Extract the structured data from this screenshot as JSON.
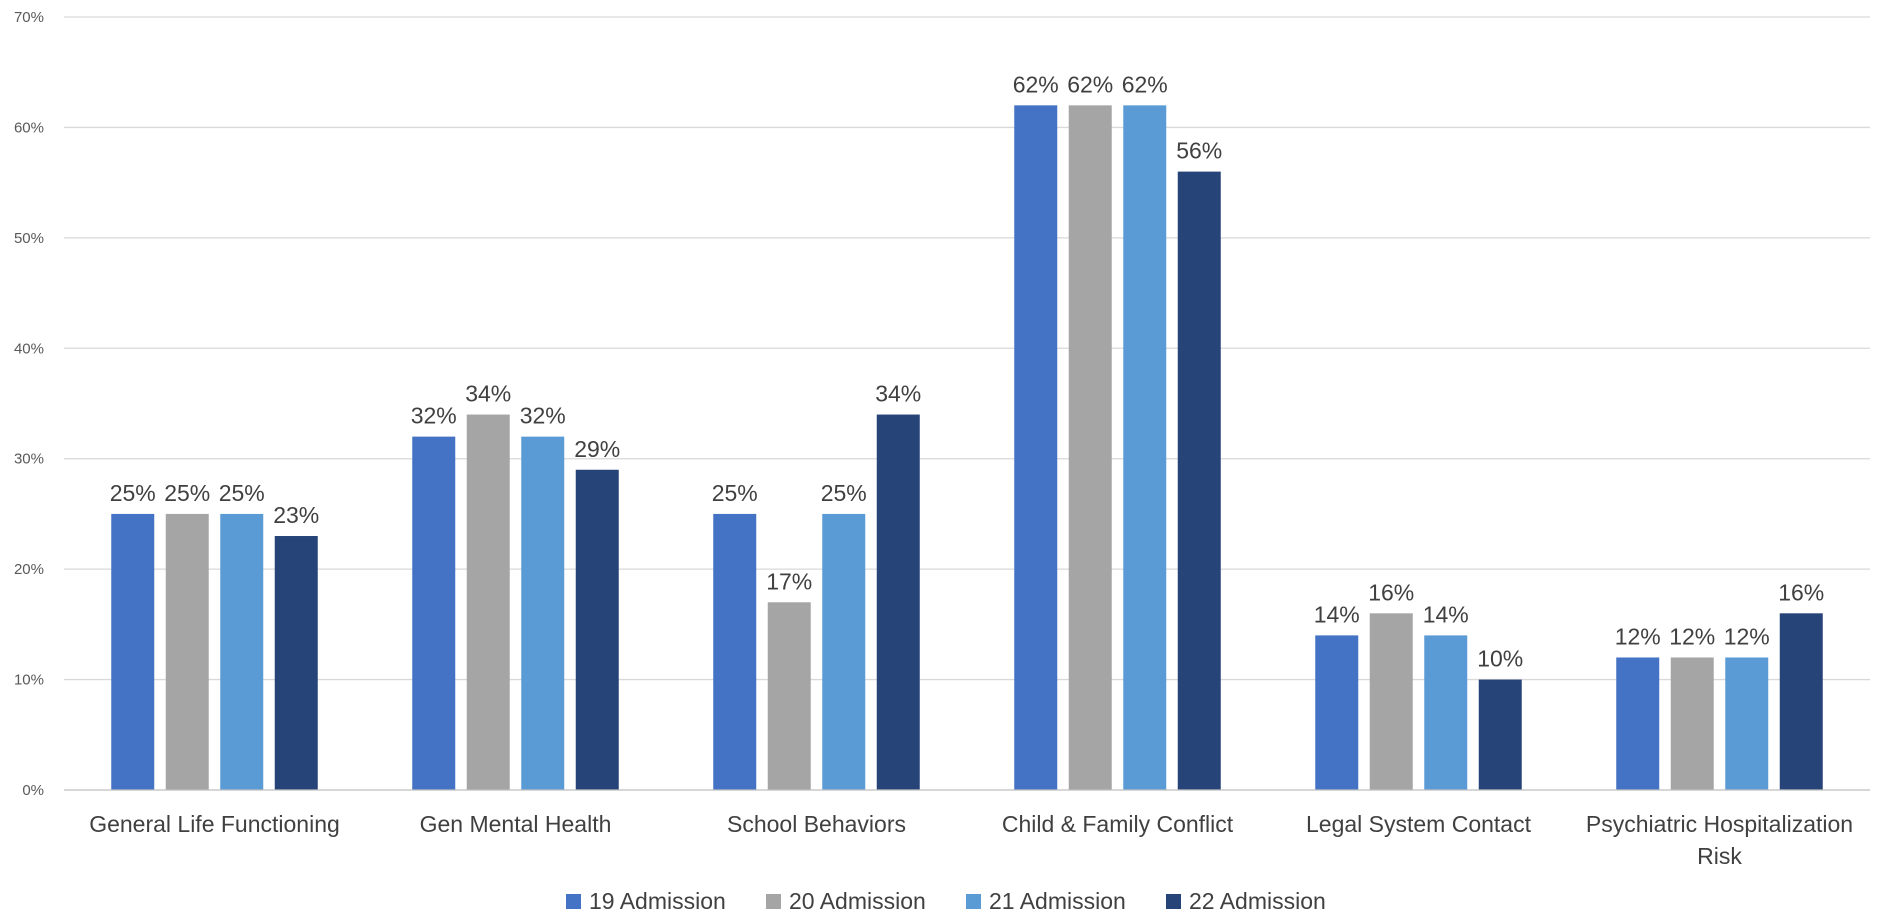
{
  "chart_data": {
    "type": "bar",
    "categories": [
      [
        "General Life Functioning"
      ],
      [
        "Gen Mental Health"
      ],
      [
        "School Behaviors"
      ],
      [
        "Child & Family Conflict"
      ],
      [
        "Legal System Contact"
      ],
      [
        "Psychiatric Hospitalization",
        "Risk"
      ]
    ],
    "series": [
      {
        "name": "19 Admission",
        "color": "#4472C4",
        "values": [
          25,
          32,
          25,
          62,
          14,
          12
        ],
        "labels": [
          "25%",
          "32%",
          "25%",
          "62%",
          "14%",
          "12%"
        ]
      },
      {
        "name": "20 Admission",
        "color": "#A5A5A5",
        "values": [
          25,
          34,
          17,
          62,
          16,
          12
        ],
        "labels": [
          "25%",
          "34%",
          "17%",
          "62%",
          "16%",
          "12%"
        ]
      },
      {
        "name": "21 Admission",
        "color": "#5B9BD5",
        "values": [
          25,
          32,
          25,
          62,
          14,
          12
        ],
        "labels": [
          "25%",
          "32%",
          "25%",
          "62%",
          "14%",
          "12%"
        ]
      },
      {
        "name": "22 Admission",
        "color": "#264478",
        "values": [
          23,
          29,
          34,
          56,
          10,
          16
        ],
        "labels": [
          "23%",
          "29%",
          "34%",
          "56%",
          "10%",
          "16%"
        ]
      }
    ],
    "ylim": [
      0,
      70
    ],
    "yticks": [
      0,
      10,
      20,
      30,
      40,
      50,
      60,
      70
    ],
    "ytick_labels": [
      "0%",
      "10%",
      "20%",
      "30%",
      "40%",
      "50%",
      "60%",
      "70%"
    ],
    "title": "",
    "xlabel": "",
    "ylabel": "",
    "grid": true,
    "legend_position": "bottom"
  }
}
